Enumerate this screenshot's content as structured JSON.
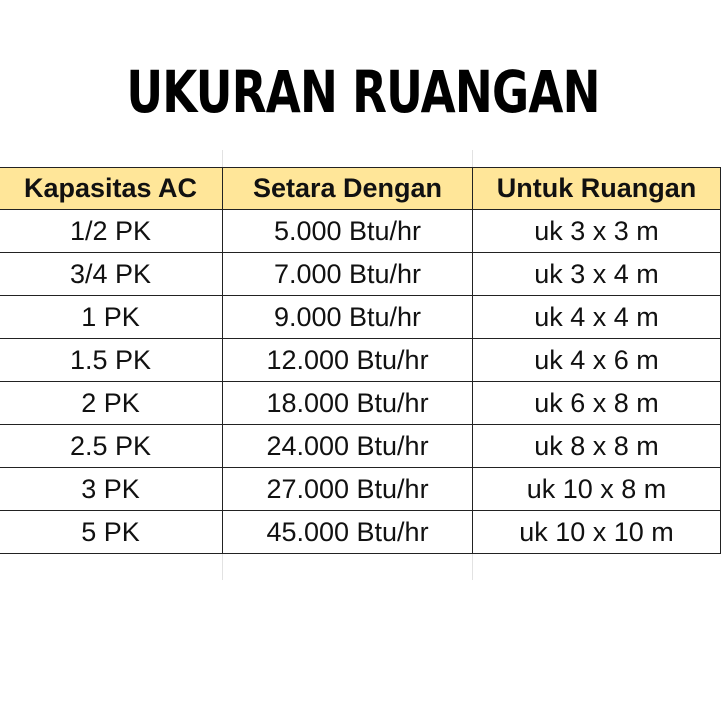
{
  "title": "UKURAN RUANGAN",
  "table": {
    "headers": [
      "Kapasitas AC",
      "Setara Dengan",
      "Untuk Ruangan"
    ],
    "header_color": "#ffe699",
    "rows": [
      [
        "1/2 PK",
        "5.000 Btu/hr",
        "uk 3 x 3 m"
      ],
      [
        "3/4 PK",
        "7.000 Btu/hr",
        "uk 3 x 4 m"
      ],
      [
        "1 PK",
        "9.000 Btu/hr",
        "uk 4 x 4 m"
      ],
      [
        "1.5 PK",
        "12.000 Btu/hr",
        "uk 4 x 6 m"
      ],
      [
        "2 PK",
        "18.000 Btu/hr",
        "uk 6 x 8 m"
      ],
      [
        "2.5 PK",
        "24.000 Btu/hr",
        "uk 8 x 8 m"
      ],
      [
        "3 PK",
        "27.000 Btu/hr",
        "uk 10 x 8 m"
      ],
      [
        "5 PK",
        "45.000 Btu/hr",
        "uk 10 x 10 m"
      ]
    ]
  }
}
